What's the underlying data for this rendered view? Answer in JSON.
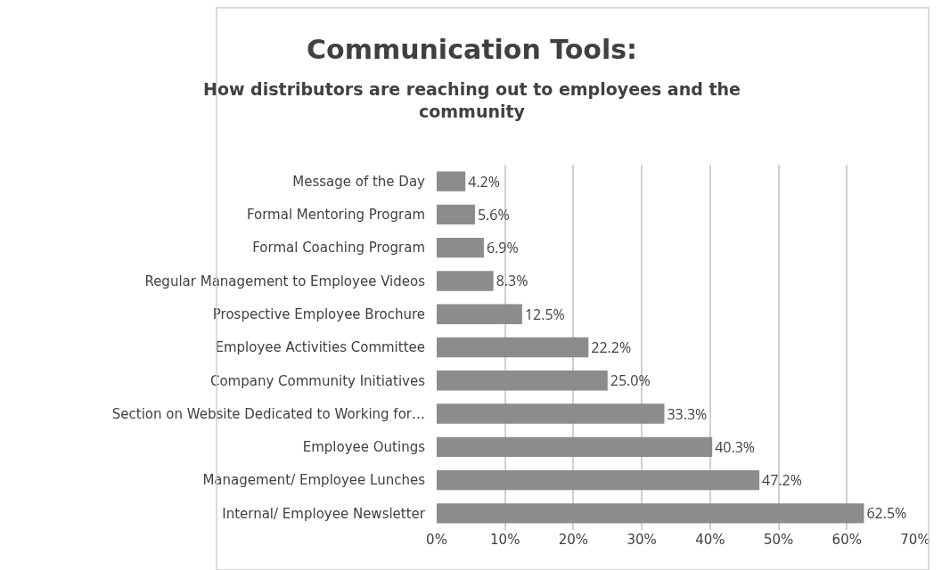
{
  "chart_data": {
    "type": "bar",
    "orientation": "horizontal",
    "title": "Communication Tools:",
    "subtitle": "How distributors are reaching out to employees and the community",
    "categories": [
      "Message of the Day",
      "Formal Mentoring Program",
      "Formal Coaching Program",
      "Regular Management to Employee Videos",
      "Prospective Employee Brochure",
      "Employee Activities Committee",
      "Company Community Initiatives",
      "Section on Website Dedicated to Working for…",
      "Employee Outings",
      "Management/ Employee Lunches",
      "Internal/ Employee Newsletter"
    ],
    "values": [
      4.2,
      5.6,
      6.9,
      8.3,
      12.5,
      22.2,
      25.0,
      33.3,
      40.3,
      47.2,
      62.5
    ],
    "value_labels": [
      "4.2%",
      "5.6%",
      "6.9%",
      "8.3%",
      "12.5%",
      "22.2%",
      "25.0%",
      "33.3%",
      "40.3%",
      "47.2%",
      "62.5%"
    ],
    "color": "#8c8c8c",
    "xlim": [
      0,
      70
    ],
    "xticks": [
      {
        "value": 0,
        "label": "0%"
      },
      {
        "value": 10,
        "label": "10%"
      },
      {
        "value": 20,
        "label": "20%"
      },
      {
        "value": 30,
        "label": "30%"
      },
      {
        "value": 40,
        "label": "40%"
      },
      {
        "value": 50,
        "label": "50%"
      },
      {
        "value": 60,
        "label": "60%"
      },
      {
        "value": 70,
        "label": "70%"
      }
    ],
    "grid": "x"
  }
}
